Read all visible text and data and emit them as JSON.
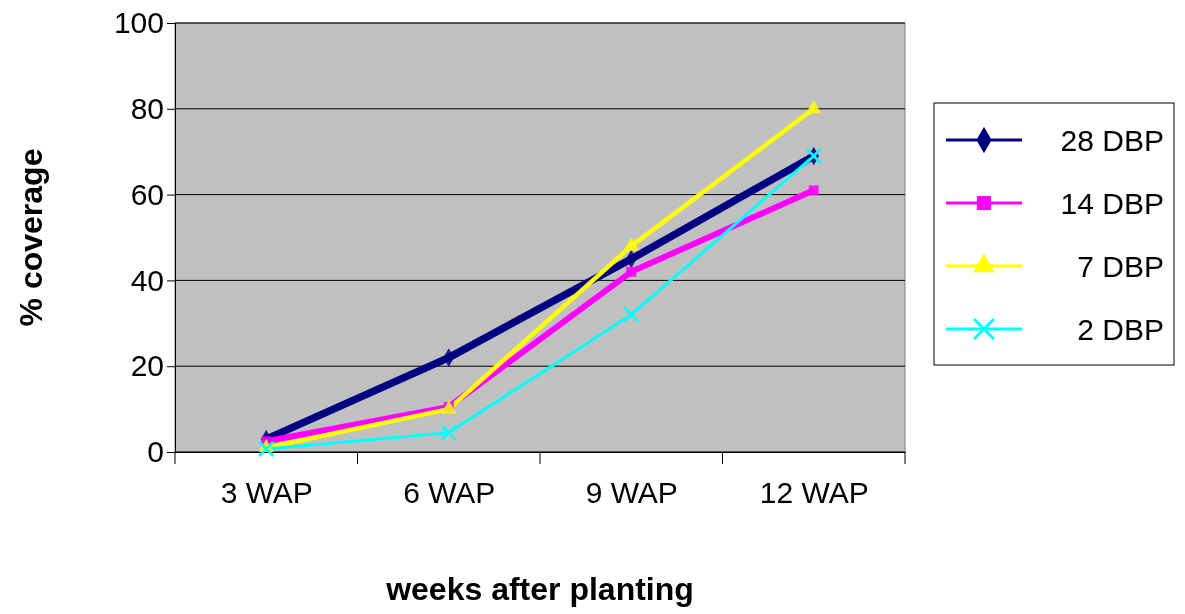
{
  "chart_data": {
    "type": "line",
    "xlabel": "weeks after planting",
    "ylabel": "% coverage",
    "categories": [
      "3 WAP",
      "6 WAP",
      "9 WAP",
      "12 WAP"
    ],
    "series": [
      {
        "name": "28 DBP",
        "color": "#000080",
        "marker": "diamond",
        "values": [
          3,
          22,
          45,
          69
        ]
      },
      {
        "name": "14 DBP",
        "color": "#ff00ff",
        "marker": "square",
        "values": [
          2.5,
          10.5,
          42,
          61
        ]
      },
      {
        "name": "7 DBP",
        "color": "#ffff00",
        "marker": "triangle",
        "values": [
          1,
          10,
          48,
          80
        ]
      },
      {
        "name": "2 DBP",
        "color": "#00ffff",
        "marker": "cross",
        "values": [
          0.7,
          4.5,
          32,
          69
        ]
      }
    ],
    "ylim": [
      0,
      100
    ],
    "yticks": [
      0,
      20,
      40,
      60,
      80,
      100
    ],
    "grid": "y",
    "legend": "right"
  }
}
